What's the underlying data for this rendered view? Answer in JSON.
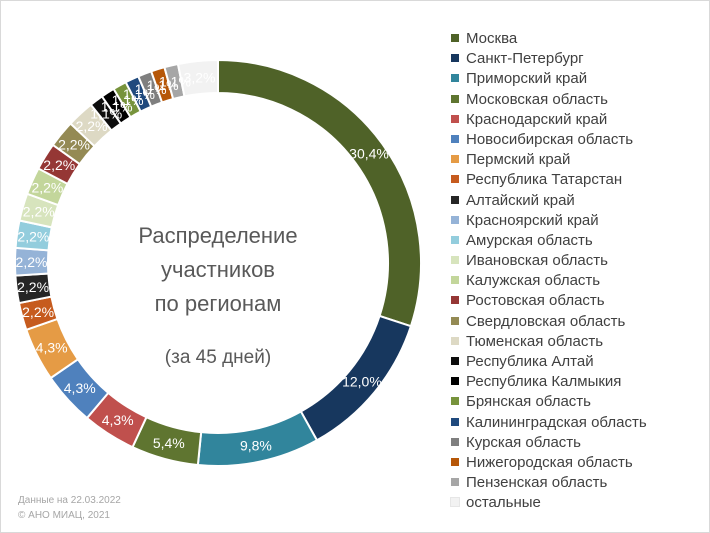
{
  "chart_data": {
    "type": "pie",
    "style": "donut",
    "title_lines": [
      "Распределение",
      "участников",
      "по регионам"
    ],
    "subtitle": "(за 45 дней)",
    "legend_position": "right",
    "slices": [
      {
        "name": "Москва",
        "value": 30.4,
        "label": "30,4%",
        "color": "#4f6228"
      },
      {
        "name": "Санкт-Петербург",
        "value": 12.0,
        "label": "12,0%",
        "color": "#17375e"
      },
      {
        "name": "Приморский край",
        "value": 9.8,
        "label": "9,8%",
        "color": "#31859c"
      },
      {
        "name": "Московская область",
        "value": 5.4,
        "label": "5,4%",
        "color": "#5f7530"
      },
      {
        "name": "Краснодарский край",
        "value": 4.3,
        "label": "4,3%",
        "color": "#c0504d"
      },
      {
        "name": "Новосибирская область",
        "value": 4.3,
        "label": "4,3%",
        "color": "#4f81bd"
      },
      {
        "name": "Пермский край",
        "value": 4.3,
        "label": "4,3%",
        "color": "#e59b45"
      },
      {
        "name": "Республика Татарстан",
        "value": 2.2,
        "label": "2,2%",
        "color": "#c65b1e"
      },
      {
        "name": "Алтайский край",
        "value": 2.2,
        "label": "2,2%",
        "color": "#262626"
      },
      {
        "name": "Красноярский край",
        "value": 2.2,
        "label": "2,2%",
        "color": "#95b3d7"
      },
      {
        "name": "Амурская область",
        "value": 2.2,
        "label": "2,2%",
        "color": "#93cddd"
      },
      {
        "name": "Ивановская область",
        "value": 2.2,
        "label": "2,2%",
        "color": "#d7e4bd"
      },
      {
        "name": "Калужская область",
        "value": 2.2,
        "label": "2,2%",
        "color": "#c3d69b"
      },
      {
        "name": "Ростовская область",
        "value": 2.2,
        "label": "2,2%",
        "color": "#953735"
      },
      {
        "name": "Свердловская область",
        "value": 2.2,
        "label": "2,2%",
        "color": "#948a54"
      },
      {
        "name": "Тюменская область",
        "value": 2.2,
        "label": "2,2%",
        "color": "#ddd9c4"
      },
      {
        "name": "Республика Алтай",
        "value": 1.1,
        "label": "1,1%",
        "color": "#0d0d0d"
      },
      {
        "name": "Республика Калмыкия",
        "value": 1.1,
        "label": "1,1%",
        "color": "#000000"
      },
      {
        "name": "Брянская область",
        "value": 1.1,
        "label": "1,1%",
        "color": "#77933c"
      },
      {
        "name": "Калининградская область",
        "value": 1.1,
        "label": "1,1%",
        "color": "#1f497d"
      },
      {
        "name": "Курская область",
        "value": 1.1,
        "label": "1,1%",
        "color": "#7f7f7f"
      },
      {
        "name": "Нижегородская область",
        "value": 1.1,
        "label": "1,1%",
        "color": "#b65708"
      },
      {
        "name": "Пензенская область",
        "value": 1.1,
        "label": "1,1%",
        "color": "#a6a6a6"
      },
      {
        "name": "остальные",
        "value": 3.2,
        "label": "3,2%",
        "color": "#f2f2f2"
      }
    ]
  },
  "footnote": {
    "date_line": "Данные на 22.03.2022",
    "copyright_line": "© АНО МИАЦ, 2021"
  }
}
